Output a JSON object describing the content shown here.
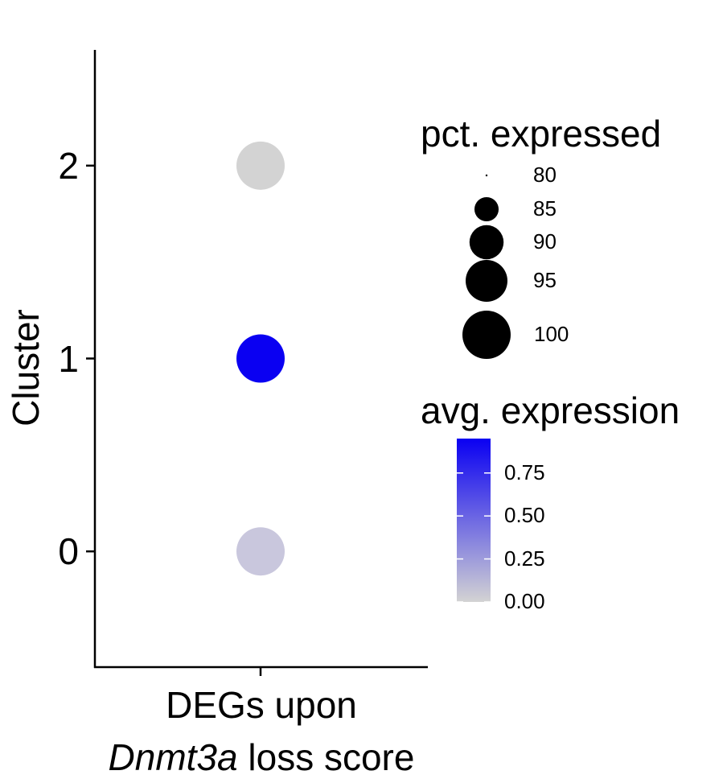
{
  "chart_data": {
    "type": "scatter",
    "subtype": "dot-plot",
    "x_categories": [
      "DEGs upon Dnmt3a loss score"
    ],
    "x_label_parts": [
      {
        "text": "DEGs upon",
        "italic": false
      },
      {
        "text": "Dnmt3a",
        "italic": true
      },
      {
        "text": " loss score",
        "italic": false
      }
    ],
    "ylabel": "Cluster",
    "y_ticks": [
      "0",
      "1",
      "2"
    ],
    "ylim": [
      -0.6,
      2.6
    ],
    "points": [
      {
        "x": "DEGs upon Dnmt3a loss score",
        "cluster": 0,
        "pct_expressed": 100,
        "avg_expression": 0.12,
        "color": "#c9c7dd"
      },
      {
        "x": "DEGs upon Dnmt3a loss score",
        "cluster": 1,
        "pct_expressed": 100,
        "avg_expression": 0.95,
        "color": "#0a00f2"
      },
      {
        "x": "DEGs upon Dnmt3a loss score",
        "cluster": 2,
        "pct_expressed": 100,
        "avg_expression": 0.0,
        "color": "#d3d3d3"
      }
    ],
    "size_legend": {
      "title": "pct. expressed",
      "entries": [
        "80",
        "85",
        "90",
        "95",
        "100"
      ],
      "values": [
        80,
        85,
        90,
        95,
        100
      ]
    },
    "color_legend": {
      "title": "avg. expression",
      "ticks": [
        "0.00",
        "0.25",
        "0.50",
        "0.75"
      ],
      "tick_values": [
        0,
        0.25,
        0.5,
        0.75
      ],
      "range": [
        0,
        0.95
      ],
      "low_color": "#d3d3d3",
      "high_color": "#0a00f2"
    },
    "legend_position": "right",
    "grid": false
  }
}
